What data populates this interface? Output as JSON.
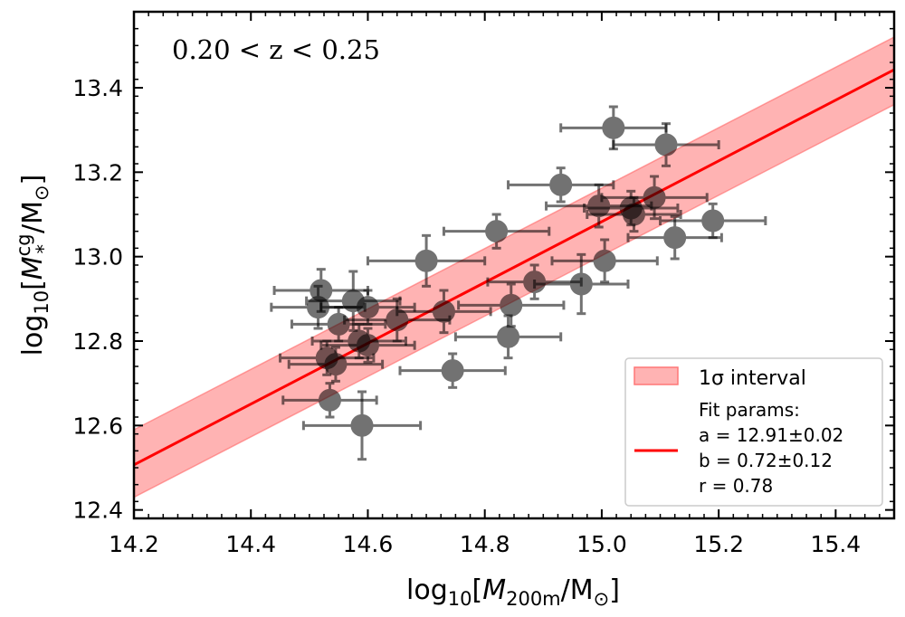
{
  "chart_data": {
    "type": "scatter",
    "annotation": "0.20 < z < 0.25",
    "xlabel": {
      "pre": "log",
      "sub": "10",
      "open": "[",
      "var": "M",
      "var_sub": "200m",
      "unit": "/M",
      "unit_sub": "⊙",
      "close": "]"
    },
    "ylabel": {
      "pre": "log",
      "sub": "10",
      "open": "[",
      "var": "M",
      "var_sup": "cg",
      "var_sub": "*",
      "unit": "/M",
      "unit_sub": "⊙",
      "close": "]"
    },
    "xlim": [
      14.2,
      15.5
    ],
    "ylim": [
      12.38,
      13.58
    ],
    "xticks": [
      "14.2",
      "14.4",
      "14.6",
      "14.8",
      "15.0",
      "15.2",
      "15.4"
    ],
    "yticks": [
      "12.4",
      "12.6",
      "12.8",
      "13.0",
      "13.2",
      "13.4"
    ],
    "fit": {
      "a": 12.91,
      "b": 0.72,
      "pivot": 14.76,
      "x_range": [
        14.2,
        15.5
      ],
      "band_lower": [
        12.43,
        13.36
      ],
      "band_upper": [
        12.59,
        13.52
      ],
      "color": "#ff0000",
      "band_color": "#ff9999"
    },
    "legend": {
      "position": "lower-right",
      "band_label": "1σ interval",
      "line_title": "Fit params:",
      "a_label": "a = 12.91±0.02",
      "b_label": "b = 0.72±0.12",
      "r_label": "r = 0.78"
    },
    "points": [
      {
        "x": 14.52,
        "y": 12.92,
        "xerr": 0.08,
        "yerr": 0.05
      },
      {
        "x": 14.515,
        "y": 12.88,
        "xerr": 0.08,
        "yerr": 0.05
      },
      {
        "x": 14.575,
        "y": 12.895,
        "xerr": 0.08,
        "yerr": 0.07
      },
      {
        "x": 14.6,
        "y": 12.88,
        "xerr": 0.08,
        "yerr": 0.04
      },
      {
        "x": 14.55,
        "y": 12.84,
        "xerr": 0.08,
        "yerr": 0.04
      },
      {
        "x": 14.585,
        "y": 12.8,
        "xerr": 0.08,
        "yerr": 0.04
      },
      {
        "x": 14.6,
        "y": 12.79,
        "xerr": 0.08,
        "yerr": 0.04
      },
      {
        "x": 14.53,
        "y": 12.76,
        "xerr": 0.08,
        "yerr": 0.04
      },
      {
        "x": 14.545,
        "y": 12.745,
        "xerr": 0.08,
        "yerr": 0.04
      },
      {
        "x": 14.535,
        "y": 12.66,
        "xerr": 0.08,
        "yerr": 0.04
      },
      {
        "x": 14.59,
        "y": 12.6,
        "xerr": 0.1,
        "yerr": 0.08
      },
      {
        "x": 14.65,
        "y": 12.85,
        "xerr": 0.09,
        "yerr": 0.05
      },
      {
        "x": 14.7,
        "y": 12.99,
        "xerr": 0.1,
        "yerr": 0.06
      },
      {
        "x": 14.73,
        "y": 12.87,
        "xerr": 0.08,
        "yerr": 0.05
      },
      {
        "x": 14.745,
        "y": 12.73,
        "xerr": 0.09,
        "yerr": 0.04
      },
      {
        "x": 14.82,
        "y": 13.06,
        "xerr": 0.09,
        "yerr": 0.04
      },
      {
        "x": 14.845,
        "y": 12.885,
        "xerr": 0.09,
        "yerr": 0.05
      },
      {
        "x": 14.84,
        "y": 12.81,
        "xerr": 0.09,
        "yerr": 0.05
      },
      {
        "x": 14.885,
        "y": 12.94,
        "xerr": 0.08,
        "yerr": 0.04
      },
      {
        "x": 14.93,
        "y": 13.17,
        "xerr": 0.09,
        "yerr": 0.04
      },
      {
        "x": 14.965,
        "y": 12.935,
        "xerr": 0.08,
        "yerr": 0.07
      },
      {
        "x": 14.995,
        "y": 13.12,
        "xerr": 0.09,
        "yerr": 0.05
      },
      {
        "x": 15.005,
        "y": 12.99,
        "xerr": 0.09,
        "yerr": 0.05
      },
      {
        "x": 15.02,
        "y": 13.305,
        "xerr": 0.09,
        "yerr": 0.05
      },
      {
        "x": 15.05,
        "y": 13.115,
        "xerr": 0.08,
        "yerr": 0.04
      },
      {
        "x": 15.055,
        "y": 13.1,
        "xerr": 0.08,
        "yerr": 0.04
      },
      {
        "x": 15.09,
        "y": 13.14,
        "xerr": 0.09,
        "yerr": 0.05
      },
      {
        "x": 15.11,
        "y": 13.265,
        "xerr": 0.09,
        "yerr": 0.05
      },
      {
        "x": 15.125,
        "y": 13.045,
        "xerr": 0.08,
        "yerr": 0.05
      },
      {
        "x": 15.19,
        "y": 13.085,
        "xerr": 0.09,
        "yerr": 0.04
      }
    ]
  }
}
